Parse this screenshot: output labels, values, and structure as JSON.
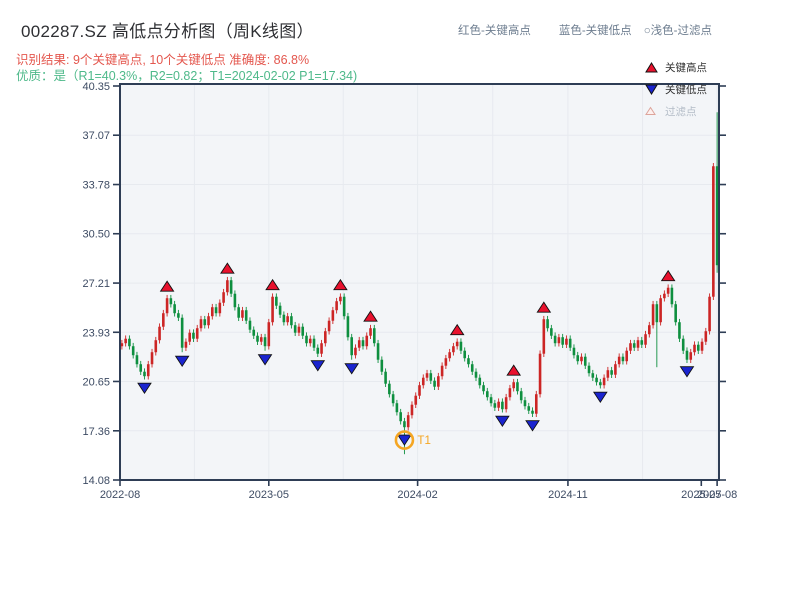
{
  "header": {
    "title": "002287.SZ 高低点分析图（周K线图）",
    "subtitle_red": "识别结果: 9个关键高点, 10个关键低点  准确度: 86.8%",
    "subtitle_green": "优质：是（R1=40.3%，R2=0.82；T1=2024-02-02 P1=17.34)",
    "legend_items": [
      {
        "label": "红色-关键高点"
      },
      {
        "label": "蓝色-关键低点"
      },
      {
        "label": "○浅色-过滤点"
      }
    ]
  },
  "plot_legend": {
    "high_label": "关键高点",
    "low_label": "关键低点",
    "filtered_label": "过滤点"
  },
  "colors": {
    "up_candle": "#cc2525",
    "down_candle": "#0e8f3f",
    "key_high_marker": "#e8112d",
    "key_low_marker": "#1a24cf",
    "marker_outline": "#111111",
    "filtered_fill": "#fdf0ee",
    "filtered_outline": "#dda49b",
    "axis": "#2e3d55",
    "grid": "#e7eaef",
    "plot_bg": "#f3f5f8",
    "tick_text": "#3d4b63",
    "t1_orange": "#f5a623"
  },
  "chart_data": {
    "type": "candlestick",
    "symbol": "002287.SZ",
    "period": "weekly",
    "title": "002287.SZ 高低点分析图（周K线图）",
    "ylim": [
      14.08,
      40.35
    ],
    "y_ticks": [
      40.35,
      37.07,
      33.78,
      30.5,
      27.21,
      23.93,
      20.65,
      17.36,
      14.08
    ],
    "x_ticks": [
      {
        "label": "2022-08",
        "week": 0
      },
      {
        "label": "2023-05",
        "week": 39.5
      },
      {
        "label": "2024-02",
        "week": 79
      },
      {
        "label": "2024-11",
        "week": 118.9
      },
      {
        "label": "2025-07",
        "week": 154.3
      },
      {
        "label": "2025-08",
        "week": 158.5
      }
    ],
    "grid_weeks": [
      19.75,
      39.5,
      59.25,
      79,
      98.95,
      118.9,
      138.7,
      158.5
    ],
    "first_open": 23.0,
    "closes": [
      23.2,
      23.5,
      23.0,
      22.4,
      21.8,
      21.3,
      21.0,
      21.8,
      22.6,
      23.4,
      24.3,
      25.2,
      26.2,
      25.8,
      25.2,
      24.9,
      22.9,
      23.3,
      23.9,
      23.5,
      24.2,
      24.8,
      24.4,
      25.0,
      25.6,
      25.2,
      25.9,
      26.6,
      27.4,
      26.5,
      25.6,
      24.9,
      25.4,
      24.7,
      24.1,
      23.7,
      23.3,
      23.6,
      23.0,
      24.6,
      26.3,
      25.7,
      25.1,
      24.6,
      25.0,
      24.4,
      23.9,
      24.3,
      23.7,
      23.2,
      23.5,
      22.9,
      22.5,
      23.2,
      24.0,
      24.7,
      25.4,
      26.0,
      26.3,
      25.0,
      23.6,
      22.4,
      22.9,
      23.4,
      23.0,
      23.7,
      24.2,
      23.2,
      22.1,
      21.3,
      20.5,
      19.8,
      19.2,
      18.6,
      18.0,
      17.6,
      18.4,
      19.1,
      19.7,
      20.4,
      20.9,
      21.2,
      20.7,
      20.3,
      21.0,
      21.7,
      22.2,
      22.6,
      23.0,
      23.3,
      22.7,
      22.2,
      21.8,
      21.3,
      20.9,
      20.4,
      20.0,
      19.6,
      19.2,
      18.9,
      19.3,
      18.8,
      19.6,
      20.2,
      20.6,
      20.0,
      19.4,
      19.0,
      18.7,
      18.5,
      19.8,
      22.5,
      24.8,
      24.2,
      23.7,
      23.2,
      23.6,
      23.1,
      23.5,
      22.9,
      22.4,
      22.0,
      22.3,
      21.7,
      21.2,
      20.9,
      20.6,
      20.4,
      20.9,
      21.4,
      21.1,
      21.8,
      22.3,
      22.0,
      22.7,
      23.2,
      22.9,
      23.4,
      23.1,
      23.8,
      24.4,
      25.8,
      24.6,
      26.2,
      26.5,
      26.9,
      25.8,
      24.6,
      23.5,
      22.7,
      22.1,
      22.6,
      23.1,
      22.7,
      23.3,
      24.0,
      26.3,
      35.0,
      28.4
    ],
    "wick_overrides": {
      "75": {
        "low": 15.8
      },
      "142": {
        "low": 21.6
      },
      "158": {
        "high": 38.6,
        "low": 27.9
      }
    },
    "key_highs": [
      {
        "week": 12,
        "price": 26.4
      },
      {
        "week": 28,
        "price": 27.6
      },
      {
        "week": 40,
        "price": 26.5
      },
      {
        "week": 58,
        "price": 26.5
      },
      {
        "week": 66,
        "price": 24.4
      },
      {
        "week": 89,
        "price": 23.5
      },
      {
        "week": 104,
        "price": 20.8
      },
      {
        "week": 112,
        "price": 25.0
      },
      {
        "week": 145,
        "price": 27.1
      }
    ],
    "key_lows": [
      {
        "week": 6,
        "price": 20.8
      },
      {
        "week": 16,
        "price": 22.6
      },
      {
        "week": 38,
        "price": 22.7
      },
      {
        "week": 52,
        "price": 22.3
      },
      {
        "week": 61,
        "price": 22.1
      },
      {
        "week": 75,
        "price": 17.34
      },
      {
        "week": 101,
        "price": 18.6
      },
      {
        "week": 109,
        "price": 18.3
      },
      {
        "week": 127,
        "price": 20.2
      },
      {
        "week": 150,
        "price": 21.9
      }
    ],
    "t1": {
      "week": 75,
      "price": 17.34,
      "label": "T1"
    }
  }
}
